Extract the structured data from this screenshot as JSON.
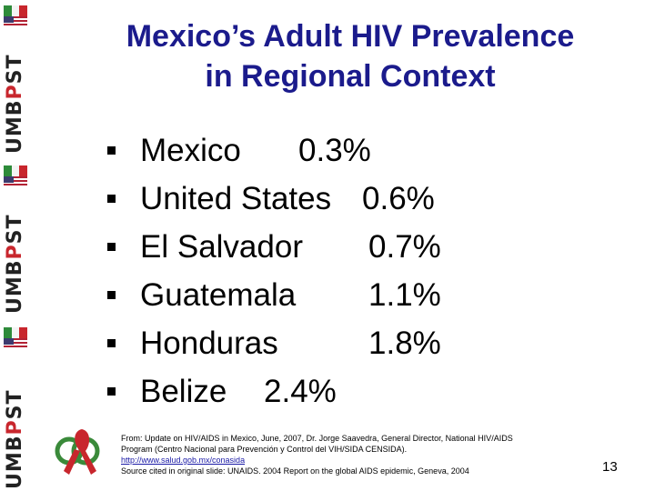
{
  "slide": {
    "title_line1": "Mexico’s Adult HIV Prevalence",
    "title_line2": "in Regional Context",
    "number": "13"
  },
  "colors": {
    "title": "#1b1b8c",
    "body_text": "#000000",
    "link": "#1a1aa6",
    "logo_red": "#c8262d",
    "logo_green": "#2e8b3a"
  },
  "prevalence": [
    {
      "country": "Mexico",
      "value": "0.3%"
    },
    {
      "country": "United States",
      "value": "0.6%"
    },
    {
      "country": "El Salvador",
      "value": "0.7%"
    },
    {
      "country": "Guatemala",
      "value": "1.1%"
    },
    {
      "country": "Honduras",
      "value": "1.8%"
    },
    {
      "country": "Belize",
      "value": "2.4%"
    }
  ],
  "footer": {
    "line1": "From: Update on HIV/AIDS in Mexico, June, 2007, Dr. Jorge Saavedra, General Director, National HIV/AIDS",
    "line2": "Program (Centro Nacional para Prevención y Control del VIH/SIDA CENSIDA).",
    "link": "http://www.salud.gob.mx/conasida",
    "line3": "Source cited in original slide: UNAIDS. 2004 Report on the global AIDS epidemic, Geneva, 2004"
  },
  "logo": {
    "text_umb": "UMB",
    "text_p": "P",
    "text_st": "ST",
    "icons": [
      "mexico-flag-icon",
      "us-flag-icon",
      "aids-ribbon-icon"
    ]
  }
}
